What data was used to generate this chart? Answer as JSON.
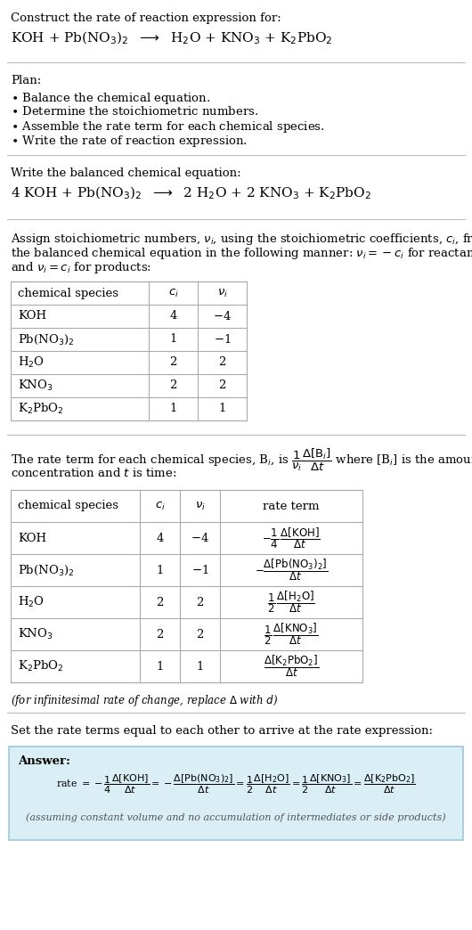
{
  "bg_color": "#ffffff",
  "text_color": "#000000",
  "gray_text": "#555555",
  "answer_bg": "#daeef5",
  "answer_border": "#a0c8d8",
  "title_line1": "Construct the rate of reaction expression for:",
  "title_line2_latex": "KOH + Pb(NO$_3$)$_2$  $\\longrightarrow$  H$_2$O + KNO$_3$ + K$_2$PbO$_2$",
  "plan_header": "Plan:",
  "plan_items": [
    "$\\bullet$ Balance the chemical equation.",
    "$\\bullet$ Determine the stoichiometric numbers.",
    "$\\bullet$ Assemble the rate term for each chemical species.",
    "$\\bullet$ Write the rate of reaction expression."
  ],
  "balanced_header": "Write the balanced chemical equation:",
  "balanced_eq": "4 KOH + Pb(NO$_3$)$_2$  $\\longrightarrow$  2 H$_2$O + 2 KNO$_3$ + K$_2$PbO$_2$",
  "stoich_intro_lines": [
    "Assign stoichiometric numbers, $\\nu_i$, using the stoichiometric coefficients, $c_i$, from",
    "the balanced chemical equation in the following manner: $\\nu_i = -c_i$ for reactants",
    "and $\\nu_i = c_i$ for products:"
  ],
  "table1_headers": [
    "chemical species",
    "$c_i$",
    "$\\nu_i$"
  ],
  "table1_rows": [
    [
      "KOH",
      "4",
      "$-$4"
    ],
    [
      "Pb(NO$_3$)$_2$",
      "1",
      "$-$1"
    ],
    [
      "H$_2$O",
      "2",
      "2"
    ],
    [
      "KNO$_3$",
      "2",
      "2"
    ],
    [
      "K$_2$PbO$_2$",
      "1",
      "1"
    ]
  ],
  "rate_intro_lines": [
    "The rate term for each chemical species, B$_i$, is $\\dfrac{1}{\\nu_i}\\dfrac{\\Delta[\\mathrm{B}_i]}{\\Delta t}$ where [B$_i$] is the amount",
    "concentration and $t$ is time:"
  ],
  "table2_headers": [
    "chemical species",
    "$c_i$",
    "$\\nu_i$",
    "rate term"
  ],
  "table2_rows": [
    [
      "KOH",
      "4",
      "$-$4",
      "$-\\dfrac{1}{4}\\,\\dfrac{\\Delta[\\mathrm{KOH}]}{\\Delta t}$"
    ],
    [
      "Pb(NO$_3$)$_2$",
      "1",
      "$-$1",
      "$-\\dfrac{\\Delta[\\mathrm{Pb(NO_3)_2}]}{\\Delta t}$"
    ],
    [
      "H$_2$O",
      "2",
      "2",
      "$\\dfrac{1}{2}\\,\\dfrac{\\Delta[\\mathrm{H_2O}]}{\\Delta t}$"
    ],
    [
      "KNO$_3$",
      "2",
      "2",
      "$\\dfrac{1}{2}\\,\\dfrac{\\Delta[\\mathrm{KNO_3}]}{\\Delta t}$"
    ],
    [
      "K$_2$PbO$_2$",
      "1",
      "1",
      "$\\dfrac{\\Delta[\\mathrm{K_2PbO_2}]}{\\Delta t}$"
    ]
  ],
  "infinitesimal_note": "(for infinitesimal rate of change, replace $\\Delta$ with $d$)",
  "set_equal_text": "Set the rate terms equal to each other to arrive at the rate expression:",
  "answer_label": "Answer:",
  "answer_eq": "rate $= -\\dfrac{1}{4}\\dfrac{\\Delta[\\mathrm{KOH}]}{\\Delta t} = -\\dfrac{\\Delta[\\mathrm{Pb(NO_3)_2}]}{\\Delta t} = \\dfrac{1}{2}\\dfrac{\\Delta[\\mathrm{H_2O}]}{\\Delta t} = \\dfrac{1}{2}\\dfrac{\\Delta[\\mathrm{KNO_3}]}{\\Delta t} = \\dfrac{\\Delta[\\mathrm{K_2PbO_2}]}{\\Delta t}$",
  "answer_note": "(assuming constant volume and no accumulation of intermediates or side products)"
}
